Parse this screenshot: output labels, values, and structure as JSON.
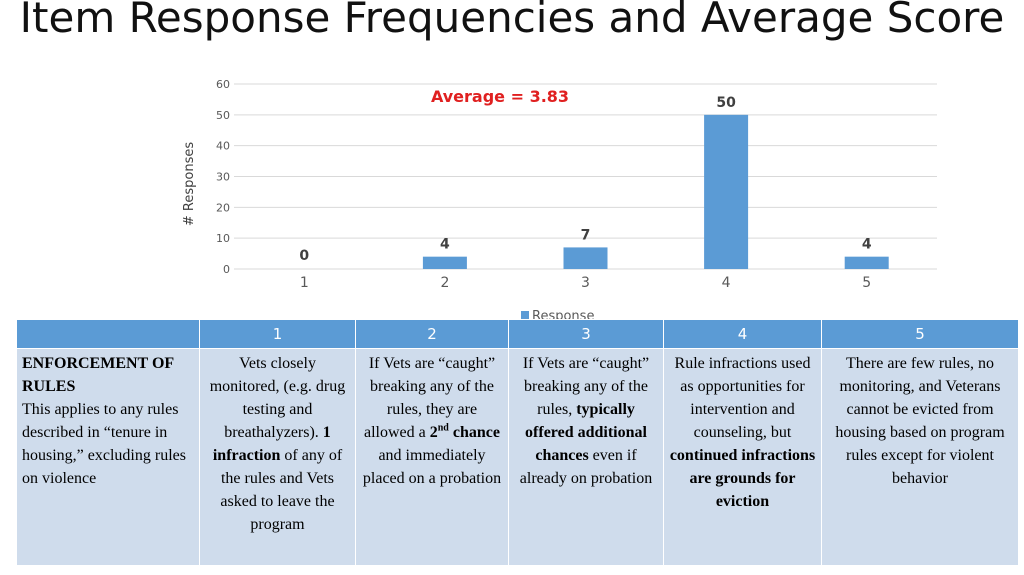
{
  "slide": {
    "title": "Item Response Frequencies and Average Score"
  },
  "chart_data": {
    "type": "bar",
    "categories": [
      "1",
      "2",
      "3",
      "4",
      "5"
    ],
    "values": [
      0,
      4,
      7,
      50,
      4
    ],
    "data_labels": [
      "0",
      "4",
      "7",
      "50",
      "4"
    ],
    "title": "",
    "annotation": "Average = 3.83",
    "xlabel": "",
    "ylabel": "# Responses",
    "ylim": [
      0,
      60
    ],
    "yticks": [
      0,
      10,
      20,
      30,
      40,
      50,
      60
    ],
    "grid": true,
    "legend": {
      "entries": [
        "Response"
      ],
      "position": "bottom"
    },
    "colors": {
      "bar": "#5b9bd5",
      "annotation": "#e02020",
      "grid": "#d9d9d9"
    }
  },
  "table": {
    "headers": [
      "",
      "1",
      "2",
      "3",
      "4",
      "5"
    ],
    "row_title": "ENFORCEMENT OF RULES",
    "row_description": "This applies to any rules described in “tenure in housing,” excluding rules on violence",
    "cells": {
      "c1_a": "Vets closely monitored, (e.g. drug testing and breathalyzers).",
      "c1_b": "1 infraction",
      "c1_c": "of any of the rules and Vets asked to leave the program",
      "c2_a": "If Vets are “caught” breaking any of the rules, they are allowed a",
      "c2_b": "2",
      "c2_sup": "nd",
      "c2_c": "chance",
      "c2_d": "and immediately placed on a probation",
      "c3_a": "If Vets are “caught” breaking any of the rules,",
      "c3_b": "typically offered additional chances",
      "c3_c": "even if already on probation",
      "c4_a": "Rule infractions used as opportunities for intervention and counseling, but",
      "c4_b": "continued infractions are grounds for eviction",
      "c5": "There are few rules, no monitoring, and Veterans cannot be evicted from housing based on program rules except for violent behavior"
    }
  }
}
